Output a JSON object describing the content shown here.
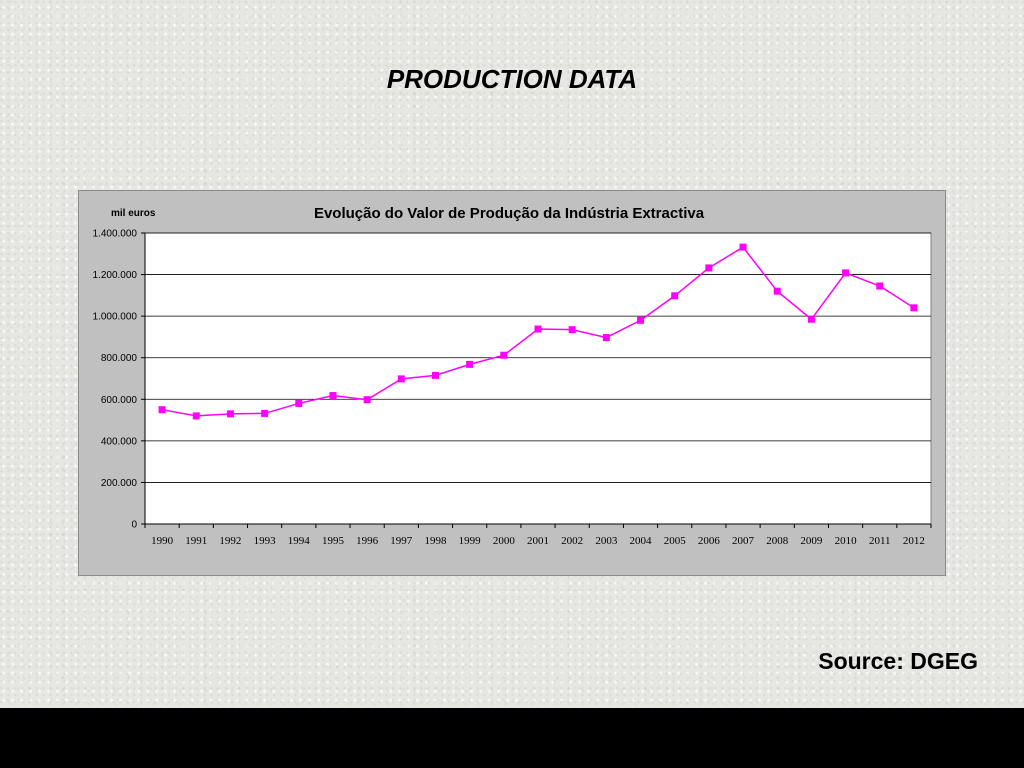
{
  "slide": {
    "title": "PRODUCTION DATA",
    "source": "Source: DGEG"
  },
  "colors": {
    "series": "#ff00ff",
    "frame": "#c0c0c0",
    "plot_bg": "#ffffff",
    "grid": "#000000"
  },
  "chart_data": {
    "type": "line",
    "title": "Evolução do Valor de Produção da Indústria Extractiva",
    "ylabel": "mil euros",
    "xlabel": "",
    "ylim": [
      0,
      1400000
    ],
    "yticks": [
      0,
      200000,
      400000,
      600000,
      800000,
      1000000,
      1200000,
      1400000
    ],
    "ytick_labels": [
      "0",
      "200.000",
      "400.000",
      "600.000",
      "800.000",
      "1.000.000",
      "1.200.000",
      "1.400.000"
    ],
    "grid": true,
    "legend": "none",
    "categories": [
      "1990",
      "1991",
      "1992",
      "1993",
      "1994",
      "1995",
      "1996",
      "1997",
      "1998",
      "1999",
      "2000",
      "2001",
      "2002",
      "2003",
      "2004",
      "2005",
      "2006",
      "2007",
      "2008",
      "2009",
      "2010",
      "2011",
      "2012"
    ],
    "series": [
      {
        "values": [
          550000,
          520000,
          530000,
          532000,
          580000,
          618000,
          598000,
          698000,
          715000,
          768000,
          812000,
          938000,
          935000,
          897000,
          980000,
          1098000,
          1232000,
          1332000,
          1120000,
          985000,
          1208000,
          1145000,
          1040000
        ]
      }
    ]
  }
}
